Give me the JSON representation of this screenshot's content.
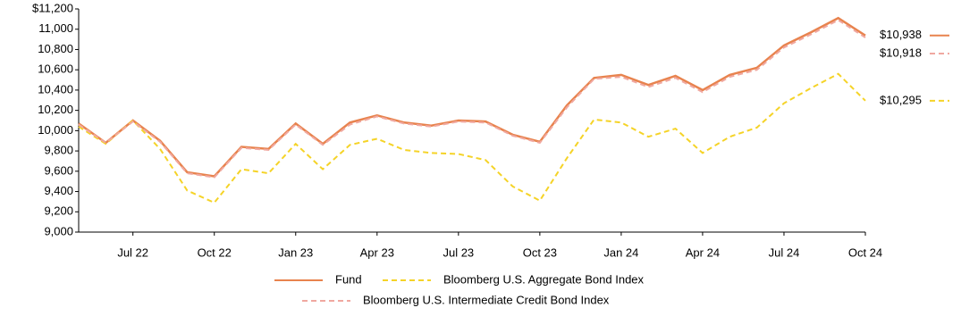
{
  "chart_data": {
    "type": "line",
    "categories": [
      null,
      null,
      "Jul 22",
      null,
      null,
      "Oct 22",
      null,
      null,
      "Jan 23",
      null,
      null,
      "Apr 23",
      null,
      null,
      "Jul 23",
      null,
      null,
      "Oct 23",
      null,
      null,
      "Jan 24",
      null,
      null,
      "Apr 24",
      null,
      null,
      "Jul 24",
      null,
      null,
      "Oct 24"
    ],
    "series": [
      {
        "name": "Fund",
        "color": "#e8834e",
        "dash": false,
        "values": [
          10070,
          9880,
          10100,
          9900,
          9590,
          9550,
          9840,
          9820,
          10070,
          9870,
          10080,
          10150,
          10080,
          10050,
          10100,
          10090,
          9960,
          9890,
          10250,
          10520,
          10550,
          10450,
          10540,
          10400,
          10550,
          10620,
          10840,
          10970,
          11110,
          10938
        ],
        "value_labels": [
          null,
          null,
          null,
          null,
          null,
          null,
          null,
          null,
          null,
          null,
          null,
          null,
          null,
          null,
          null,
          null,
          null,
          null,
          null,
          null,
          null,
          null,
          null,
          null,
          null,
          null,
          null,
          null,
          null,
          "$10,938"
        ]
      },
      {
        "name": "Bloomberg U.S. Aggregate Bond Index",
        "color": "#f5d327",
        "dash": true,
        "values": [
          10040,
          9870,
          10100,
          9820,
          9410,
          9290,
          9620,
          9580,
          9870,
          9620,
          9860,
          9920,
          9810,
          9780,
          9770,
          9710,
          9450,
          9310,
          9730,
          10110,
          10080,
          9940,
          10020,
          9780,
          9940,
          10030,
          10270,
          10420,
          10560,
          10295
        ],
        "value_labels": [
          null,
          null,
          null,
          null,
          null,
          null,
          null,
          null,
          null,
          null,
          null,
          null,
          null,
          null,
          null,
          null,
          null,
          null,
          null,
          null,
          null,
          null,
          null,
          null,
          null,
          null,
          null,
          null,
          null,
          "$10,295"
        ]
      },
      {
        "name": "Bloomberg U.S. Intermediate Credit Bond Index",
        "color": "#f0a8a0",
        "dash": true,
        "values": [
          10060,
          9880,
          10090,
          9890,
          9580,
          9540,
          9830,
          9810,
          10060,
          9860,
          10060,
          10140,
          10070,
          10040,
          10090,
          10080,
          9950,
          9880,
          10230,
          10510,
          10530,
          10430,
          10520,
          10380,
          10530,
          10600,
          10820,
          10950,
          11090,
          10918
        ],
        "value_labels": [
          null,
          null,
          null,
          null,
          null,
          null,
          null,
          null,
          null,
          null,
          null,
          null,
          null,
          null,
          null,
          null,
          null,
          null,
          null,
          null,
          null,
          null,
          null,
          null,
          null,
          null,
          null,
          null,
          null,
          "$10,918"
        ]
      }
    ],
    "ylim": [
      9000,
      11200
    ],
    "yticks": [
      {
        "value": 9000,
        "label": "9,000"
      },
      {
        "value": 9200,
        "label": "9,200"
      },
      {
        "value": 9400,
        "label": "9,400"
      },
      {
        "value": 9600,
        "label": "9,600"
      },
      {
        "value": 9800,
        "label": "9,800"
      },
      {
        "value": 10000,
        "label": "10,000"
      },
      {
        "value": 10200,
        "label": "10,200"
      },
      {
        "value": 10400,
        "label": "10,400"
      },
      {
        "value": 10600,
        "label": "10,600"
      },
      {
        "value": 10800,
        "label": "10,800"
      },
      {
        "value": 11000,
        "label": "11,000"
      },
      {
        "value": 11200,
        "label": "$11,200"
      }
    ],
    "grid": false
  }
}
